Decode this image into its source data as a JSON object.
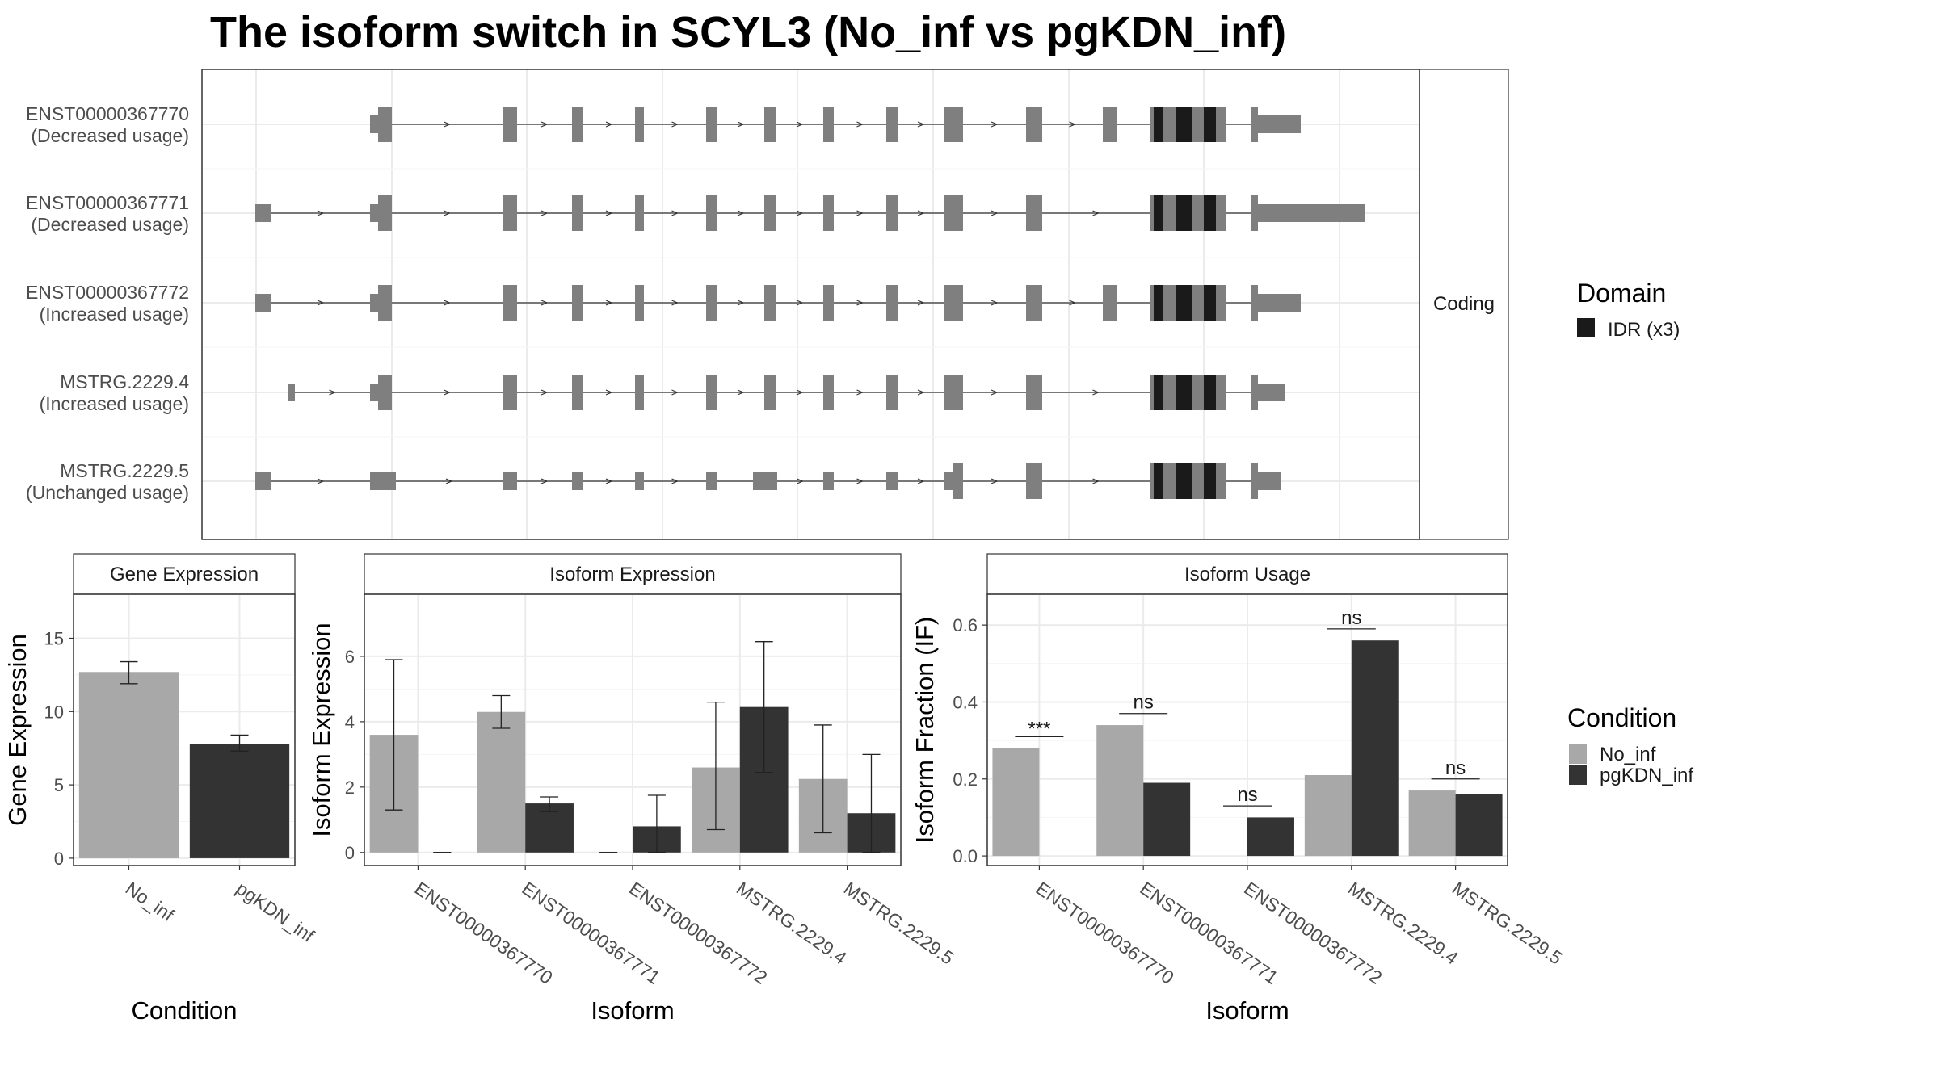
{
  "figure": {
    "title": "The isoform switch in SCYL3 (No_inf vs pgKDN_inf)"
  },
  "colors": {
    "no_inf": "#a8a8a8",
    "pgkdn_inf": "#333333",
    "exon": "#7f7f7f",
    "domain": "#1a1a1a",
    "grid": "#ebebeb",
    "strip": "#ffffff"
  },
  "legends": {
    "domain": {
      "title": "Domain",
      "items": [
        {
          "label": "IDR (x3)"
        }
      ]
    },
    "condition": {
      "title": "Condition",
      "items": [
        {
          "label": "No_inf"
        },
        {
          "label": "pgKDN_inf"
        }
      ]
    }
  },
  "chart_data": [
    {
      "type": "gene-structure",
      "facet": "Coding",
      "transcripts": [
        {
          "name": "ENST00000367770",
          "usage": "(Decreased usage)"
        },
        {
          "name": "ENST00000367771",
          "usage": "(Decreased usage)"
        },
        {
          "name": "ENST00000367772",
          "usage": "(Increased usage)"
        },
        {
          "name": "MSTRG.2229.4",
          "usage": "(Increased usage)"
        },
        {
          "name": "MSTRG.2229.5",
          "usage": "(Unchanged usage)"
        }
      ]
    },
    {
      "type": "bar",
      "strip": "Gene Expression",
      "xlabel": "Condition",
      "ylabel": "Gene Expression",
      "categories": [
        "No_inf",
        "pgKDN_inf"
      ],
      "values": [
        12.7,
        7.8
      ],
      "errors": [
        [
          11.9,
          13.4
        ],
        [
          7.3,
          8.4
        ]
      ],
      "ylim": [
        -0.5,
        18
      ],
      "yticks": [
        "0",
        "5",
        "10",
        "15"
      ]
    },
    {
      "type": "bar",
      "strip": "Isoform Expression",
      "xlabel": "Isoform",
      "ylabel": "Isoform Expression",
      "categories": [
        "ENST00000367770",
        "ENST00000367771",
        "ENST00000367772",
        "MSTRG.2229.4",
        "MSTRG.2229.5"
      ],
      "series": [
        {
          "name": "No_inf",
          "values": [
            3.6,
            4.3,
            0.0,
            2.6,
            2.25
          ],
          "errors": [
            [
              1.3,
              5.9
            ],
            [
              3.8,
              4.8
            ],
            [
              0.0,
              0.0
            ],
            [
              0.7,
              4.6
            ],
            [
              0.6,
              3.9
            ]
          ]
        },
        {
          "name": "pgKDN_inf",
          "values": [
            0.0,
            1.5,
            0.8,
            4.45,
            1.2
          ],
          "errors": [
            [
              0.0,
              0.0
            ],
            [
              1.25,
              1.7
            ],
            [
              0.0,
              1.75
            ],
            [
              2.45,
              6.45
            ],
            [
              0.0,
              3.0
            ]
          ]
        }
      ],
      "ylim": [
        -0.4,
        7.9
      ],
      "yticks": [
        "0",
        "2",
        "4",
        "6"
      ]
    },
    {
      "type": "bar",
      "strip": "Isoform Usage",
      "xlabel": "Isoform",
      "ylabel": "Isoform Fraction (IF)",
      "categories": [
        "ENST00000367770",
        "ENST00000367771",
        "ENST00000367772",
        "MSTRG.2229.4",
        "MSTRG.2229.5"
      ],
      "series": [
        {
          "name": "No_inf",
          "values": [
            0.28,
            0.34,
            0.0,
            0.21,
            0.17
          ]
        },
        {
          "name": "pgKDN_inf",
          "values": [
            0.0,
            0.19,
            0.1,
            0.56,
            0.16
          ]
        }
      ],
      "significance": [
        "***",
        "ns",
        "ns",
        "ns",
        "ns"
      ],
      "ylim": [
        -0.025,
        0.68
      ],
      "yticks": [
        "0.0",
        "0.2",
        "0.4",
        "0.6"
      ]
    }
  ]
}
